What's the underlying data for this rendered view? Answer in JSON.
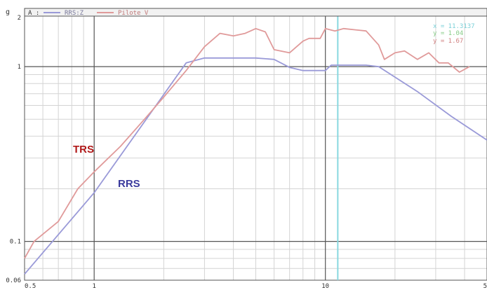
{
  "chart_data": {
    "type": "line",
    "ylabel": "g",
    "xscale": "log",
    "yscale": "log",
    "xlim": [
      0.5,
      50
    ],
    "ylim": [
      0.06,
      2
    ],
    "grid": true,
    "legend_placement": "top-left",
    "legend_prefix": "A :",
    "x_tick_labels": [
      "0.5",
      "1",
      "10",
      "5"
    ],
    "y_tick_labels": [
      "2",
      "1",
      "0.1",
      "0.06"
    ],
    "series": [
      {
        "name": "RRS:Z",
        "color": "#9a9ad8",
        "points": [
          [
            0.5,
            0.065
          ],
          [
            1,
            0.19
          ],
          [
            2.5,
            1.05
          ],
          [
            3,
            1.12
          ],
          [
            5,
            1.12
          ],
          [
            6,
            1.1
          ],
          [
            7,
            0.99
          ],
          [
            8,
            0.95
          ],
          [
            10,
            0.95
          ],
          [
            10.6,
            1.02
          ],
          [
            15,
            1.02
          ],
          [
            17,
            1.0
          ],
          [
            25,
            0.72
          ],
          [
            35,
            0.52
          ],
          [
            50,
            0.38
          ]
        ]
      },
      {
        "name": "Pilote V",
        "color": "#e09a9a",
        "points": [
          [
            0.5,
            0.08
          ],
          [
            0.55,
            0.1
          ],
          [
            0.6,
            0.11
          ],
          [
            0.7,
            0.13
          ],
          [
            0.85,
            0.2
          ],
          [
            1,
            0.25
          ],
          [
            1.3,
            0.35
          ],
          [
            1.65,
            0.5
          ],
          [
            2,
            0.67
          ],
          [
            2.5,
            0.95
          ],
          [
            3,
            1.3
          ],
          [
            3.5,
            1.55
          ],
          [
            4,
            1.5
          ],
          [
            4.5,
            1.55
          ],
          [
            5,
            1.65
          ],
          [
            5.5,
            1.58
          ],
          [
            6,
            1.25
          ],
          [
            7,
            1.2
          ],
          [
            8,
            1.4
          ],
          [
            8.5,
            1.45
          ],
          [
            9.5,
            1.45
          ],
          [
            10,
            1.65
          ],
          [
            11,
            1.6
          ],
          [
            12,
            1.65
          ],
          [
            15,
            1.6
          ],
          [
            17,
            1.33
          ],
          [
            18,
            1.1
          ],
          [
            20,
            1.2
          ],
          [
            22,
            1.23
          ],
          [
            25,
            1.1
          ],
          [
            28,
            1.2
          ],
          [
            31,
            1.05
          ],
          [
            34,
            1.05
          ],
          [
            38,
            0.93
          ],
          [
            42,
            1.0
          ]
        ]
      }
    ],
    "cursor": {
      "x": 11.3137,
      "x_label": "x = 11.3137",
      "y_rrs_label": "y = 1.04",
      "y_pilote_label": "y = 1.67",
      "color": "#88d8e0"
    },
    "annotations": [
      {
        "text": "TRS",
        "color": "#b01818"
      },
      {
        "text": "RRS",
        "color": "#3a3a9c"
      }
    ]
  }
}
